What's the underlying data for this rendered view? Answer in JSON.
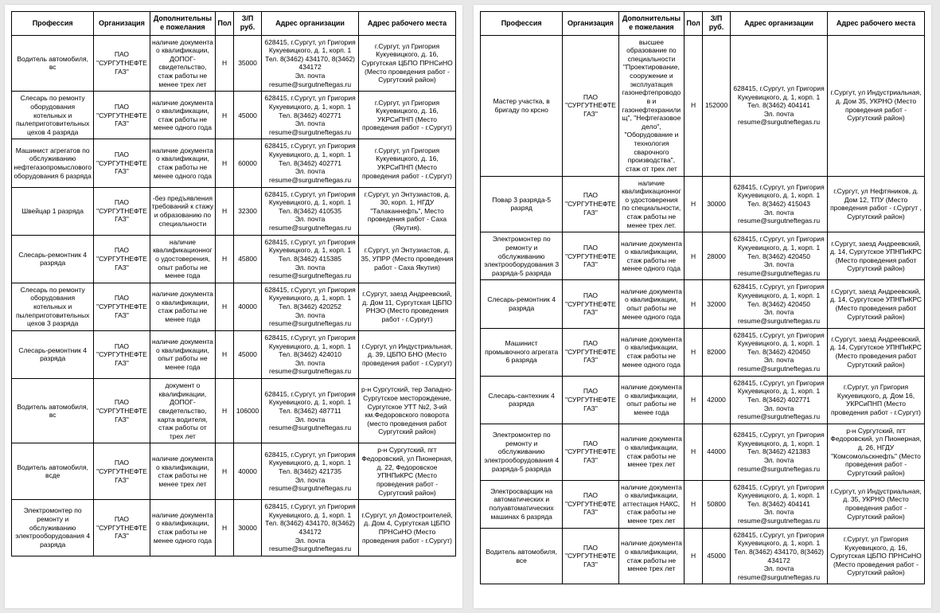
{
  "headers": [
    "Профессия",
    "Организация",
    "Дополнительные пожелания",
    "Пол",
    "З/П руб.",
    "Адрес организации",
    "Адрес рабочего места"
  ],
  "left": {
    "rows": [
      [
        "Водитель автомобиля, вс",
        "ПАО \"СУРГУТНЕФТЕГАЗ\"",
        "наличие документа о квалификации, ДОПОГ-свидетельство, стаж работы не менее трех лет",
        "Н",
        "35000",
        "628415, г.Сургут, ул Григория Кукуевицкого, д. 1, корп. 1\nТел. 8(3462) 434170, 8(3462) 434172\nЭл. почта resume@surgutneftegas.ru",
        "г.Сургут, ул Григория Кукуевицкого, д. 16, Сургутская ЦБПО ПРНСиНО (Место проведения работ - Сургутский район)"
      ],
      [
        "Слесарь по ремонту оборудования котельных и пылеприготовительных цехов 4 разряда",
        "ПАО \"СУРГУТНЕФТЕГАЗ\"",
        "наличие документа о квалификации, стаж работы не менее одного года",
        "Н",
        "45000",
        "628415, г.Сургут, ул Григория Кукуевицкого, д. 1, корп. 1\nТел. 8(3462) 402771\nЭл. почта resume@surgutneftegas.ru",
        "г.Сургут, ул Григория Кукуевицкого, д. 16, УКРСиПНП (Место проведения работ - г.Сургут)"
      ],
      [
        "Машинист агрегатов по обслуживанию нефтегазопромыслового оборудования 6 разряда",
        "ПАО \"СУРГУТНЕФТЕГАЗ\"",
        "наличие документа о квалификации, стаж работы не менее одного года",
        "Н",
        "60000",
        "628415, г.Сургут, ул Григория Кукуевицкого, д. 1, корп. 1\nТел. 8(3462) 402771\nЭл. почта resume@surgutneftegas.ru",
        "г.Сургут, ул Григория Кукуевицкого, д. 16, УКРСиПНП (Место проведения работ - г.Сургут)"
      ],
      [
        "Швейцар 1 разряда",
        "ПАО \"СУРГУТНЕФТЕГАЗ\"",
        "-без предъявления требований к стажу и образованию по специальности",
        "Н",
        "32300",
        "628415, г.Сургут, ул Григория Кукуевицкого, д. 1, корп. 1\nТел. 8(3462) 410535\nЭл. почта resume@surgutneftegas.ru",
        "г.Сургут, ул Энтузиастов, д. 30, корп. 1, НГДУ \"Талаканнефть\", Место проведения работ - Саха (Якутия)."
      ],
      [
        "Слесарь-ремонтник 4 разряда",
        "ПАО \"СУРГУТНЕФТЕГАЗ\"",
        "наличие квалификационного удостоверения, опыт работы не менее года",
        "Н",
        "45800",
        "628415, г.Сургут, ул Григория Кукуевицкого, д. 1, корп. 1\nТел. 8(3462) 415385\nЭл. почта resume@surgutneftegas.ru",
        "г.Сургут, ул Энтузиастов, д. 35, УПРР (Место проведения работ - Саха Якутия)"
      ],
      [
        "Слесарь по ремонту оборудования котельных и пылеприготовительных цехов 3 разряда",
        "ПАО \"СУРГУТНЕФТЕГАЗ\"",
        "наличие документа о квалификации, стаж работы не менее года",
        "Н",
        "40000",
        "628415, г.Сургут, ул Григория Кукуевицкого, д. 1, корп. 1\nТел. 8(3462) 420252\nЭл. почта resume@surgutneftegas.ru",
        "г.Сургут, заезд Андреевский, д. Дом 11, Сургутская ЦБПО РНЭО (Место проведения работ - г.Сургут)"
      ],
      [
        "Слесарь-ремонтник 4 разряда",
        "ПАО \"СУРГУТНЕФТЕГАЗ\"",
        "наличие документа о квалификации, опыт работы не менее года",
        "Н",
        "45000",
        "628415, г.Сургут, ул Григория Кукуевицкого, д. 1, корп. 1\nТел. 8(3462) 424010\nЭл. почта resume@surgutneftegas.ru",
        "г.Сургут, ул Индустриальная, д. 39, ЦБПО БНО (Место проведения работ - г.Сургут)"
      ],
      [
        "Водитель автомобиля, вс",
        "ПАО \"СУРГУТНЕФТЕГАЗ\"",
        "документ о квалификации, ДОПОГ-свидетельство, карта водителя, стаж работы от трех лет",
        "Н",
        "106000",
        "628415, г.Сургут, ул Григория Кукуевицкого, д. 1, корп. 1\nТел. 8(3462) 487711\nЭл. почта resume@surgutneftegas.ru",
        "р-н Сургутский, тер Западно-Сургутское месторождение, Сургутское УТТ №2, 3-ий км.Федоровского поворота (место проведения работ Сургутский район)"
      ],
      [
        "Водитель автомобиля, вcде",
        "ПАО \"СУРГУТНЕФТЕГАЗ\"",
        "наличие документа о квалификации, стаж работы не менее трех лет",
        "Н",
        "40000",
        "628415, г.Сургут, ул Григория Кукуевицкого, д. 1, корп. 1\nТел. 8(3462) 421735\nЭл. почта resume@surgutneftegas.ru",
        "р-н Сургутский, пгт Федоровский, ул Пионерная, д. 22, Федоровское УПНПиКРС (Место проведения работ - Сургутский район)"
      ],
      [
        "Электромонтер по ремонту и обслуживанию электрооборудования 4 разряда",
        "ПАО \"СУРГУТНЕФТЕГАЗ\"",
        "наличие документа о квалификации, стаж работы не менее  одного года",
        "Н",
        "30000",
        "628415, г.Сургут, ул Григория Кукуевицкого, д. 1, корп. 1\nТел. 8(3462) 434170, 8(3462) 434172\nЭл. почта resume@surgutneftegas.ru",
        "г.Сургут, ул Домостроителей, д. Дом 4, Сургутская ЦБПО ПРНСиНО (Место проведения работ - г.Сургут)"
      ]
    ]
  },
  "right": {
    "rows": [
      [
        "Мастер участка, в бригаду по крсно",
        "ПАО \"СУРГУТНЕФТЕГАЗ\"",
        "высшее образование по специальности \"Проектирование, сооружение и эксплуатация газонефтепроводов и газонефтехранилищ\", \"Нефтегазовое дело\", \"Оборудование и технология сварочного производства\", стаж от трех лет",
        "Н",
        "152000",
        "628415, г.Сургут, ул Григория Кукуевицкого, д. 1, корп. 1\nТел. 8(3462) 404141\nЭл. почта resume@surgutneftegas.ru",
        "г.Сургут, ул Индустриальная, д. Дом 35, УКРНО (Место проведения работ - Сургутский район)"
      ],
      [
        "Повар 3 разряда-5 разряд",
        "ПАО \"СУРГУТНЕФТЕГАЗ\"",
        "наличие квалификационного удостоверения по специальности, стаж работы не менее трех лет.",
        "Н",
        "30000",
        "628415, г.Сургут, ул Григория Кукуевицкого, д. 1, корп. 1\nТел. 8(3462) 415043\nЭл. почта resume@surgutneftegas.ru",
        "г.Сургут, ул Нефтяников, д. Дом  12, ТПУ (Место проведения работ - г.Сургут , Сургутский район)"
      ],
      [
        "Электромонтер по ремонту и обслуживанию электрооборудования 3 разряда-5 разряда",
        "ПАО \"СУРГУТНЕФТЕГАЗ\"",
        "наличие документа о квалификации, стаж работы не менее одного года",
        "Н",
        "28000",
        "628415, г.Сургут, ул Григория Кукуевицкого, д. 1, корп. 1\nТел. 8(3462) 420450\nЭл. почта resume@surgutneftegas.ru",
        "г.Сургут, заезд Андреевский, д. 14, Сургутское УПНПиКРС (Место проведения работ Сургутский район)"
      ],
      [
        "Слесарь-ремонтник 4 разряда",
        "ПАО \"СУРГУТНЕФТЕГАЗ\"",
        "наличие документа о квалификации, опыт работы не менее одного года",
        "Н",
        "32000",
        "628415, г.Сургут, ул Григория Кукуевицкого, д. 1, корп. 1\nТел. 8(3462) 420450\nЭл. почта resume@surgutneftegas.ru",
        "г.Сургут, заезд Андреевский, д. 14, Сургутское УПНПиКРС (Место проведения работ Сургутский район)"
      ],
      [
        "Машинист промывочного агрегата 6 разряда",
        "ПАО \"СУРГУТНЕФТЕГАЗ\"",
        "наличие документа о квалификации, стаж работы не менее одного года",
        "Н",
        "82000",
        "628415, г.Сургут, ул Григория Кукуевицкого, д. 1, корп. 1\nТел. 8(3462) 420450\nЭл. почта resume@surgutneftegas.ru",
        "г.Сургут, заезд Андреевский, д. 14, Сургутское УПНПиКРС (Место проведения работ Сургутский район)"
      ],
      [
        "Слесарь-сантехник 4 разряда",
        "ПАО \"СУРГУТНЕФТЕГАЗ\"",
        "наличие документа о квалификации, опыт работы не менее года",
        "Н",
        "42000",
        "628415, г.Сургут, ул Григория Кукуевицкого, д. 1, корп. 1\nТел. 8(3462) 402771\nЭл. почта resume@surgutneftegas.ru",
        "г.Сургут, ул Григория Кукуевицкого, д. Дом  16, УКРСиПНП (Место проведения работ - г.Сургут)"
      ],
      [
        "Электромонтер по ремонту и обслуживанию электрооборудования 4 разряда-5 разряда",
        "ПАО \"СУРГУТНЕФТЕГАЗ\"",
        "наличие документа о квалификации, стаж работы не менее трех лет",
        "Н",
        "44000",
        "628415, г.Сургут, ул Григория Кукуевицкого, д. 1, корп. 1\nТел. 8(3462) 421383\nЭл. почта resume@surgutneftegas.ru",
        "р-н Сургутский, пгт Федоровский, ул Пионерная, д. 26, НГДУ \"Комсомольскнефть\" (Место проведения работ - Сургутский район)"
      ],
      [
        "Электросварщик на автоматических и полуавтоматических машинах 6 разряда",
        "ПАО \"СУРГУТНЕФТЕГАЗ\"",
        "наличие документа о квалификации, аттестация НАКС, стаж работы не менее трех лет",
        "Н",
        "50800",
        "628415, г.Сургут, ул Григория Кукуевицкого, д. 1, корп. 1\nТел. 8(3462) 404141\nЭл. почта resume@surgutneftegas.ru",
        "г.Сургут, ул Индустриальная, д. 35, УКРНО (Место проведения работ - Сургутский район)"
      ],
      [
        "Водитель автомобиля, все",
        "ПАО \"СУРГУТНЕФТЕГАЗ\"",
        "наличие документа о квалификации, стаж работы не менее трех лет",
        "Н",
        "45000",
        "628415, г.Сургут, ул Григория Кукуевицкого, д. 1, корп. 1\nТел. 8(3462) 434170, 8(3462) 434172\nЭл. почта resume@surgutneftegas.ru",
        "г.Сургут, ул Григория Кукуевицкого, д. 16, Сургутская ЦБПО ПРНСиНО (Место проведения работ - Сургутский район)"
      ]
    ]
  }
}
